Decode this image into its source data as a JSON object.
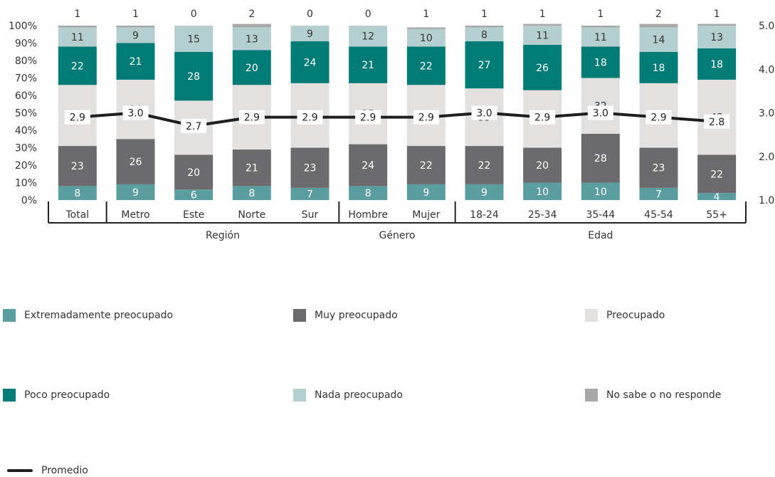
{
  "chart_data": {
    "type": "bar",
    "stacked": true,
    "categories": [
      "Total",
      "Metro",
      "Este",
      "Norte",
      "Sur",
      "Hombre",
      "Mujer",
      "18-24",
      "25-34",
      "35-44",
      "45-54",
      "55+"
    ],
    "groups": [
      {
        "label": "Región",
        "categories": [
          "Metro",
          "Este",
          "Norte",
          "Sur"
        ]
      },
      {
        "label": "Género",
        "categories": [
          "Hombre",
          "Mujer"
        ]
      },
      {
        "label": "Edad",
        "categories": [
          "18-24",
          "25-34",
          "35-44",
          "45-54",
          "55+"
        ]
      }
    ],
    "series": [
      {
        "name": "Extremadamente preocupado",
        "color": "#5b9ea0",
        "values": [
          8,
          9,
          6,
          8,
          7,
          8,
          9,
          9,
          10,
          10,
          7,
          4
        ]
      },
      {
        "name": "Muy preocupado",
        "color": "#6b6b6e",
        "values": [
          23,
          26,
          20,
          21,
          23,
          24,
          22,
          22,
          20,
          28,
          23,
          22
        ]
      },
      {
        "name": "Preocupado",
        "color": "#e2e1e0",
        "values": [
          35,
          34,
          31,
          37,
          37,
          35,
          35,
          33,
          33,
          32,
          37,
          43
        ]
      },
      {
        "name": "Poco preocupado",
        "color": "#007b75",
        "values": [
          22,
          21,
          28,
          20,
          24,
          21,
          22,
          27,
          26,
          18,
          18,
          18
        ]
      },
      {
        "name": "Nada preocupado",
        "color": "#b5cfd1",
        "values": [
          11,
          9,
          15,
          13,
          9,
          12,
          10,
          8,
          11,
          11,
          14,
          13
        ]
      },
      {
        "name": "No sabe o no responde",
        "color": "#a8a8a8",
        "values": [
          1,
          1,
          0,
          2,
          0,
          0,
          1,
          1,
          1,
          1,
          2,
          1
        ]
      }
    ],
    "line": {
      "name": "Promedio",
      "color": "#1e1e1e",
      "values": [
        "2.9",
        "3.0",
        "2.7",
        "2.9",
        "2.9",
        "2.9",
        "2.9",
        "3.0",
        "2.9",
        "3.0",
        "2.9",
        "2.8"
      ]
    },
    "y_left": {
      "min": 0,
      "max": 100,
      "ticks": [
        "0%",
        "10%",
        "20%",
        "30%",
        "40%",
        "50%",
        "60%",
        "70%",
        "80%",
        "90%",
        "100%"
      ]
    },
    "y_right": {
      "min": 1.0,
      "max": 5.0,
      "ticks": [
        "1.0",
        "2.0",
        "3.0",
        "4.0",
        "5.0"
      ]
    },
    "legend_position": "bottom",
    "grid": false
  }
}
